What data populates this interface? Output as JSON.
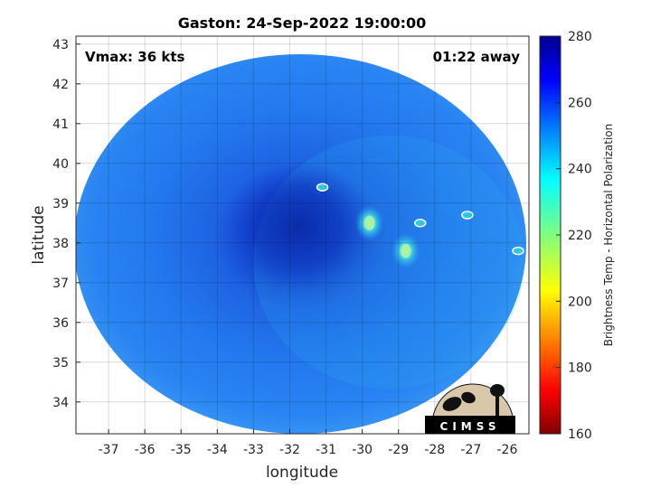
{
  "chart_data": {
    "type": "heatmap",
    "title": "Gaston: 24-Sep-2022 19:00:00",
    "xlabel": "longitude",
    "ylabel": "latitude",
    "xlim": [
      -37.9,
      -25.4
    ],
    "ylim": [
      33.2,
      43.2
    ],
    "xticks": [
      -37,
      -36,
      -35,
      -34,
      -33,
      -32,
      -31,
      -30,
      -29,
      -28,
      -27,
      -26
    ],
    "yticks": [
      34,
      35,
      36,
      37,
      38,
      39,
      40,
      41,
      42,
      43
    ],
    "grid": true,
    "annotations": {
      "vmax": "Vmax: 36 kts",
      "away": "01:22 away"
    },
    "colorbar": {
      "label": "Brightness Temp - Horizontal Polarization",
      "range": [
        160,
        280
      ],
      "ticks": [
        160,
        180,
        200,
        220,
        240,
        260,
        280
      ],
      "colormap": "jet"
    },
    "swath": {
      "center_lon": -31.9,
      "center_lat": 38.1,
      "edge": "circular swath clipped at right edge",
      "background_temp": 255,
      "core_temp": 270,
      "core_lon": -31.5,
      "core_lat": 38.5
    },
    "features": [
      {
        "lon": -29.8,
        "lat": 38.5,
        "temp": 236
      },
      {
        "lon": -28.8,
        "lat": 37.8,
        "temp": 232
      },
      {
        "lon": -31.1,
        "lat": 39.4,
        "temp": 244
      },
      {
        "lon": -28.4,
        "lat": 38.5,
        "temp": 244
      },
      {
        "lon": -27.1,
        "lat": 38.7,
        "temp": 244
      },
      {
        "lon": -25.7,
        "lat": 37.8,
        "temp": 244
      }
    ],
    "logo": "CIMSS"
  },
  "colors": {
    "ocean_blue": "#1f6fe6",
    "deep_blue": "#0a2fb8",
    "cyan": "#21c7e8",
    "light_cyan": "#6fe6d8"
  }
}
